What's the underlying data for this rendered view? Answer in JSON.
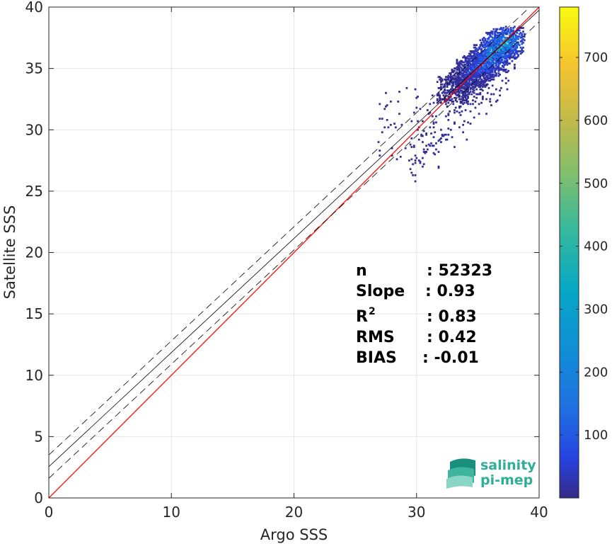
{
  "chart_data": {
    "type": "heatmap",
    "xlabel": "Argo SSS",
    "ylabel": "Satellite SSS",
    "xlim": [
      0,
      40
    ],
    "ylim": [
      0,
      40
    ],
    "xticks": [
      0,
      10,
      20,
      30,
      40
    ],
    "yticks": [
      0,
      5,
      10,
      15,
      20,
      25,
      30,
      35,
      40
    ],
    "grid": true,
    "colorbar": {
      "colormap": "parula",
      "range": [
        0,
        780
      ],
      "ticks": [
        100,
        200,
        300,
        400,
        500,
        600,
        700
      ]
    },
    "lines": [
      {
        "name": "1:1",
        "color": "#ff0000",
        "style": "solid",
        "x": [
          0,
          40
        ],
        "y": [
          0,
          40
        ]
      },
      {
        "name": "regression",
        "color": "#000000",
        "style": "solid",
        "x": [
          0,
          40
        ],
        "y": [
          2.55,
          39.75
        ]
      },
      {
        "name": "regression + 1 std",
        "color": "#000000",
        "style": "dashed",
        "x": [
          0,
          40
        ],
        "y": [
          3.5,
          40.7
        ]
      },
      {
        "name": "regression - 1 std",
        "color": "#000000",
        "style": "dashed",
        "x": [
          0,
          40
        ],
        "y": [
          1.6,
          38.8
        ]
      }
    ],
    "density_core": [
      {
        "x": 33.0,
        "y": 33.3,
        "count": 30
      },
      {
        "x": 34.0,
        "y": 34.0,
        "count": 80
      },
      {
        "x": 34.5,
        "y": 34.6,
        "count": 120
      },
      {
        "x": 35.0,
        "y": 35.0,
        "count": 200
      },
      {
        "x": 35.5,
        "y": 35.4,
        "count": 300
      },
      {
        "x": 36.0,
        "y": 35.9,
        "count": 420
      },
      {
        "x": 36.5,
        "y": 36.4,
        "count": 560
      },
      {
        "x": 37.0,
        "y": 36.9,
        "count": 700
      },
      {
        "x": 37.5,
        "y": 37.3,
        "count": 500
      }
    ],
    "density_cloud": {
      "x": [
        29.5,
        38.0
      ],
      "y": [
        29.0,
        38.0
      ],
      "max_count": 780
    }
  },
  "stats": [
    {
      "label": "n",
      "value": ": 52323"
    },
    {
      "label": "Slope",
      "value": ": 0.93"
    },
    {
      "label": "R",
      "sup": "2",
      "value": ": 0.83"
    },
    {
      "label": "RMS",
      "value": ": 0.42"
    },
    {
      "label": "BIAS",
      "value": ": -0.01"
    }
  ],
  "logo": {
    "line1": "salinity",
    "line2": "pi-mep"
  },
  "colors": {
    "one_to_one": "#ff0000",
    "regression": "#000000",
    "grid": "#e6e6e6",
    "axes": "#262626",
    "logo": "#2fae98"
  }
}
